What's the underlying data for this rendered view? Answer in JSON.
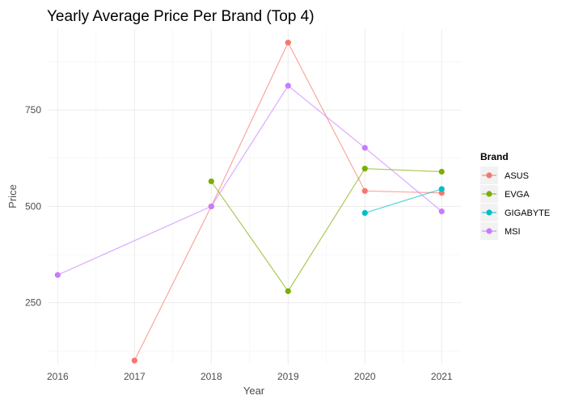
{
  "chart_data": {
    "type": "line",
    "title": "Yearly Average Price Per Brand (Top 4)",
    "xlabel": "Year",
    "ylabel": "Price",
    "x": [
      2016,
      2017,
      2018,
      2019,
      2020,
      2021
    ],
    "xlim": [
      2015.87,
      2021.25
    ],
    "ylim": [
      90,
      960
    ],
    "y_ticks": [
      250,
      500,
      750
    ],
    "grid": true,
    "legend_title": "Brand",
    "legend_position": "right",
    "series": [
      {
        "name": "ASUS",
        "color": "#F8766D",
        "points": [
          [
            2017,
            100
          ],
          [
            2018,
            500
          ],
          [
            2019,
            925
          ],
          [
            2020,
            540
          ],
          [
            2021,
            535
          ]
        ]
      },
      {
        "name": "EVGA",
        "color": "#7CAE00",
        "points": [
          [
            2018,
            565
          ],
          [
            2019,
            280
          ],
          [
            2020,
            598
          ],
          [
            2021,
            590
          ]
        ]
      },
      {
        "name": "GIGABYTE",
        "color": "#00BFC4",
        "points": [
          [
            2020,
            483
          ],
          [
            2021,
            545
          ]
        ]
      },
      {
        "name": "MSI",
        "color": "#C77CFF",
        "points": [
          [
            2016,
            322
          ],
          [
            2018,
            500
          ],
          [
            2019,
            813
          ],
          [
            2020,
            652
          ],
          [
            2021,
            487
          ]
        ]
      }
    ]
  }
}
